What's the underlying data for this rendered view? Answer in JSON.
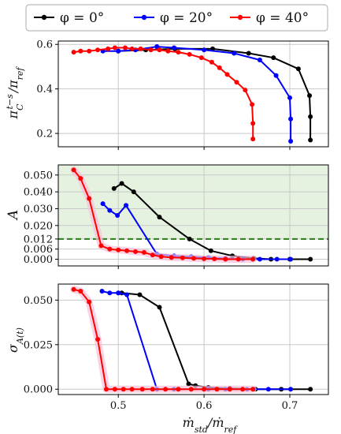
{
  "chart_data": [
    {
      "type": "line",
      "ylabel": "π_C^{t-s}/π_ref",
      "xlim": [
        0.43,
        0.745
      ],
      "ylim": [
        0.14,
        0.615
      ],
      "yticks": [
        {
          "v": 0.2,
          "label": "0.2"
        },
        {
          "v": 0.4,
          "label": "0.4"
        },
        {
          "v": 0.6,
          "label": "0.6"
        }
      ],
      "xticks": [
        0.5,
        0.6,
        0.7
      ],
      "grid": true,
      "series": [
        {
          "name": "φ = 0°",
          "color": "#000000",
          "x": [
            0.724,
            0.724,
            0.723,
            0.71,
            0.681,
            0.652,
            0.61,
            0.566,
            0.532,
            0.5
          ],
          "y": [
            0.17,
            0.275,
            0.37,
            0.49,
            0.54,
            0.56,
            0.58,
            0.58,
            0.575,
            0.57
          ]
        },
        {
          "name": "φ = 20°",
          "color": "#0000ff",
          "x": [
            0.701,
            0.701,
            0.7,
            0.684,
            0.665,
            0.635,
            0.6,
            0.565,
            0.545,
            0.52,
            0.5,
            0.482
          ],
          "y": [
            0.165,
            0.265,
            0.36,
            0.46,
            0.53,
            0.56,
            0.575,
            0.585,
            0.59,
            0.575,
            0.57,
            0.57
          ]
        },
        {
          "name": "φ = 40°",
          "color": "#ff0000",
          "x": [
            0.657,
            0.657,
            0.656,
            0.648,
            0.638,
            0.627,
            0.618,
            0.609,
            0.597,
            0.583,
            0.57,
            0.558,
            0.548,
            0.538,
            0.526,
            0.516,
            0.508,
            0.496,
            0.488,
            0.476,
            0.466,
            0.456,
            0.448
          ],
          "y": [
            0.175,
            0.245,
            0.33,
            0.395,
            0.43,
            0.465,
            0.495,
            0.52,
            0.54,
            0.555,
            0.565,
            0.57,
            0.575,
            0.575,
            0.58,
            0.58,
            0.585,
            0.585,
            0.58,
            0.575,
            0.57,
            0.57,
            0.565
          ]
        }
      ]
    },
    {
      "type": "line",
      "ylabel": "A",
      "xlim": [
        0.43,
        0.745
      ],
      "ylim": [
        -0.004,
        0.056
      ],
      "yticks": [
        {
          "v": 0.0,
          "label": "0.000"
        },
        {
          "v": 0.006,
          "label": "0.006"
        },
        {
          "v": 0.012,
          "label": "0.012"
        },
        {
          "v": 0.02,
          "label": "0.020"
        },
        {
          "v": 0.03,
          "label": "0.030"
        },
        {
          "v": 0.04,
          "label": "0.040"
        },
        {
          "v": 0.05,
          "label": "0.050"
        }
      ],
      "xticks": [
        0.5,
        0.6,
        0.7
      ],
      "grid": true,
      "shaded_region": {
        "from": 0.012,
        "color": "#e6f2e0"
      },
      "threshold_line": {
        "value": 0.012,
        "color": "#2c7a1a",
        "style": "dashed"
      },
      "series": [
        {
          "name": "φ = 0°",
          "color": "#000000",
          "x": [
            0.495,
            0.504,
            0.518,
            0.548,
            0.583,
            0.608,
            0.633,
            0.658,
            0.678,
            0.7,
            0.724
          ],
          "y": [
            0.042,
            0.045,
            0.04,
            0.025,
            0.012,
            0.005,
            0.002,
            0.0005,
            0.0,
            0.0,
            0.0
          ]
        },
        {
          "name": "φ = 20°",
          "color": "#0000ff",
          "x": [
            0.482,
            0.49,
            0.499,
            0.509,
            0.545,
            0.565,
            0.585,
            0.605,
            0.625,
            0.645,
            0.665,
            0.685,
            0.701
          ],
          "y": [
            0.033,
            0.029,
            0.026,
            0.032,
            0.003,
            0.002,
            0.0015,
            0.001,
            0.0005,
            0.0,
            0.0,
            0.0,
            0.0
          ]
        },
        {
          "name": "φ = 40°",
          "color": "#ff0000",
          "x": [
            0.448,
            0.456,
            0.466,
            0.48,
            0.49,
            0.5,
            0.51,
            0.52,
            0.53,
            0.54,
            0.55,
            0.562,
            0.575,
            0.588,
            0.6,
            0.612,
            0.625,
            0.64,
            0.657
          ],
          "y": [
            0.053,
            0.048,
            0.036,
            0.008,
            0.006,
            0.0055,
            0.005,
            0.0045,
            0.004,
            0.0025,
            0.0015,
            0.001,
            0.0008,
            0.0005,
            0.0003,
            0.0002,
            0.0,
            0.0,
            0.0
          ]
        }
      ]
    },
    {
      "type": "line",
      "ylabel": "σ_{A(t)}",
      "xlabel": "ṁ_std/ṁ_ref",
      "xlim": [
        0.43,
        0.745
      ],
      "ylim": [
        -0.003,
        0.059
      ],
      "yticks": [
        {
          "v": 0.0,
          "label": "0.000"
        },
        {
          "v": 0.025,
          "label": "0.025"
        },
        {
          "v": 0.05,
          "label": "0.050"
        }
      ],
      "xticks": [
        0.5,
        0.6,
        0.7
      ],
      "grid": true,
      "series": [
        {
          "name": "φ = 0°",
          "color": "#000000",
          "x": [
            0.5,
            0.504,
            0.525,
            0.548,
            0.582,
            0.59,
            0.605,
            0.63,
            0.66,
            0.69,
            0.724
          ],
          "y": [
            0.054,
            0.054,
            0.053,
            0.046,
            0.003,
            0.002,
            0.001,
            0.0005,
            0.0,
            0.0,
            0.0
          ]
        },
        {
          "name": "φ = 20°",
          "color": "#0000ff",
          "x": [
            0.481,
            0.49,
            0.5,
            0.51,
            0.545,
            0.565,
            0.585,
            0.605,
            0.625,
            0.65,
            0.675,
            0.701
          ],
          "y": [
            0.055,
            0.054,
            0.054,
            0.053,
            0.0,
            0.0,
            0.0,
            0.0,
            0.0,
            0.0,
            0.0,
            0.0
          ]
        },
        {
          "name": "φ = 40°",
          "color": "#ff0000",
          "x": [
            0.448,
            0.456,
            0.466,
            0.476,
            0.486,
            0.496,
            0.506,
            0.516,
            0.528,
            0.54,
            0.555,
            0.57,
            0.585,
            0.6,
            0.615,
            0.63,
            0.645,
            0.657
          ],
          "y": [
            0.056,
            0.055,
            0.049,
            0.028,
            0.0,
            0.0,
            0.0,
            0.0,
            0.0,
            0.0,
            0.0,
            0.0,
            0.0,
            0.0,
            0.0,
            0.0,
            0.0,
            0.0
          ]
        }
      ]
    }
  ],
  "legend": {
    "placement": "top-center",
    "items": [
      {
        "label": "φ = 0°",
        "color": "#000000"
      },
      {
        "label": "φ = 20°",
        "color": "#0000ff"
      },
      {
        "label": "φ = 40°",
        "color": "#ff0000"
      }
    ]
  }
}
